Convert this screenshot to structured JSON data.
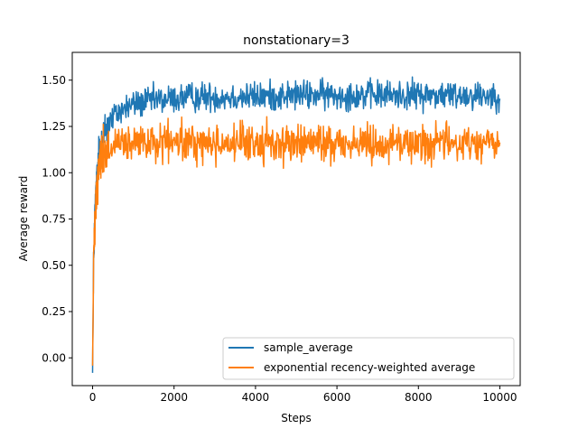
{
  "chart_data": {
    "type": "line",
    "title": "nonstationary=3",
    "xlabel": "Steps",
    "ylabel": "Average reward",
    "xlim": [
      -500,
      10500
    ],
    "ylim": [
      -0.15,
      1.65
    ],
    "xticks": [
      0,
      2000,
      4000,
      6000,
      8000,
      10000
    ],
    "xtick_labels": [
      "0",
      "2000",
      "4000",
      "6000",
      "8000",
      "10000"
    ],
    "yticks": [
      0.0,
      0.25,
      0.5,
      0.75,
      1.0,
      1.25,
      1.5
    ],
    "ytick_labels": [
      "0.00",
      "0.25",
      "0.50",
      "0.75",
      "1.00",
      "1.25",
      "1.50"
    ],
    "grid": false,
    "legend_position": "lower right",
    "series": [
      {
        "name": "sample_average",
        "color": "#1f77b4",
        "x": [
          0,
          25,
          50,
          100,
          150,
          200,
          300,
          400,
          600,
          800,
          1000,
          1500,
          2000,
          2500,
          3000,
          4000,
          5000,
          6000,
          7000,
          8000,
          9000,
          10000
        ],
        "center": [
          -0.05,
          0.5,
          0.75,
          0.95,
          1.08,
          1.15,
          1.22,
          1.27,
          1.32,
          1.35,
          1.37,
          1.39,
          1.4,
          1.41,
          1.41,
          1.41,
          1.42,
          1.42,
          1.42,
          1.42,
          1.42,
          1.42
        ],
        "spread": [
          0.03,
          0.1,
          0.1,
          0.1,
          0.1,
          0.1,
          0.09,
          0.08,
          0.07,
          0.07,
          0.07,
          0.07,
          0.07,
          0.07,
          0.07,
          0.07,
          0.07,
          0.07,
          0.07,
          0.07,
          0.07,
          0.07
        ]
      },
      {
        "name": "exponential recency-weighted average",
        "color": "#ff7f0e",
        "x": [
          0,
          25,
          50,
          100,
          150,
          200,
          300,
          400,
          600,
          800,
          1000,
          1500,
          2000,
          2500,
          3000,
          4000,
          5000,
          6000,
          7000,
          8000,
          9000,
          10000
        ],
        "center": [
          -0.03,
          0.5,
          0.75,
          0.95,
          1.03,
          1.08,
          1.12,
          1.13,
          1.14,
          1.15,
          1.15,
          1.16,
          1.16,
          1.16,
          1.16,
          1.16,
          1.16,
          1.16,
          1.16,
          1.16,
          1.16,
          1.16
        ],
        "spread": [
          0.03,
          0.1,
          0.12,
          0.12,
          0.12,
          0.12,
          0.11,
          0.1,
          0.09,
          0.09,
          0.09,
          0.09,
          0.09,
          0.09,
          0.09,
          0.09,
          0.09,
          0.09,
          0.09,
          0.09,
          0.09,
          0.09
        ]
      }
    ]
  }
}
